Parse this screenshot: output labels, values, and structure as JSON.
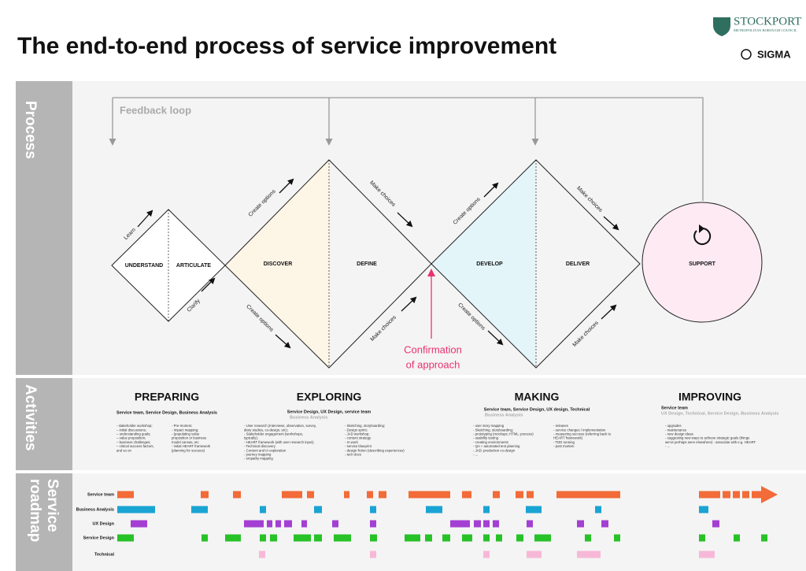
{
  "header": {
    "title": "The end-to-end process of service improvement",
    "logos": [
      "STOCKPORT",
      "METROPOLITAN BOROUGH COUNCIL",
      "SIGMA"
    ]
  },
  "sections": [
    {
      "lines": [
        "Process"
      ]
    },
    {
      "lines": [
        "Activities"
      ]
    },
    {
      "lines": [
        "Service",
        "roadmap"
      ]
    }
  ],
  "process": {
    "feedback_loop": "Feedback loop",
    "stages": [
      "UNDERSTAND",
      "ARTICULATE",
      "DISCOVER",
      "DEFINE",
      "DEVELOP",
      "DELIVER",
      "SUPPORT"
    ],
    "arrow_labels": [
      "Learn",
      "Clarify",
      "Create options",
      "Create options",
      "Make choices",
      "Make choices",
      "Create options",
      "Create options",
      "Make choices",
      "Make choices"
    ],
    "milestone": [
      "Confirmation",
      "of approach"
    ]
  },
  "activities": [
    {
      "title": "PREPARING",
      "teams": "Service team, Service Design, Business Analysis",
      "columns": [
        [
          "- stakeholder workshop;",
          "– initial discussions;",
          "– understanding goals;",
          "– value proposition;",
          "– business challenges;",
          "– critical success factors,",
          "and so on"
        ],
        [
          "- Pre-mortem;",
          "- Impact mapping;",
          "- (populating value",
          "proposition or business",
          "model canvas, etc",
          "- initial HEART framework",
          "(planning for success)"
        ]
      ]
    },
    {
      "title": "EXPLORING",
      "teams": "Service Design, UX Design, service team",
      "teams_secondary": "Business Analysis",
      "columns": [
        [
          "- User research (interviews, observation, survey,",
          "diary studies, co-design, etc);",
          "- Stakeholder engagement (workshops,",
          "typically);",
          "- HEART framework (with user research input);",
          "- Technical discovery",
          "- Content and IA exploration",
          "- journey mapping",
          "- empathy mapping"
        ],
        [
          "- Sketching, storyboarding;",
          "- Design sprint;",
          "- JAD workshop;",
          "- content strategy",
          "- IA work",
          "- service blueprint",
          "- design fiction (describing experiences)",
          "- tech docs"
        ]
      ]
    },
    {
      "title": "MAKING",
      "teams": "Service team, Service Design, UX design, Technical",
      "teams_secondary": "Business Analysis",
      "columns": [
        [
          "- user story mapping",
          "- Sketching, storyboarding;",
          "- prototyping (mockups; HTML; process)",
          "- usability testing",
          "- creating environments",
          "- QA + automated test planning",
          "- JAD: production co-design",
          "- ..."
        ],
        [
          "- releases",
          "- service changes / implementation",
          "- measuring success (referring back to",
          "HEART framework)",
          "- TDD running",
          "- post mortem"
        ]
      ]
    },
    {
      "title": "IMPROVING",
      "teams": "Service team",
      "teams_secondary": "UX Design, Technical, Service Design, Business Analysis",
      "columns": [
        [
          "- upgrades",
          "- maintenance",
          "- new design ideas",
          "- suggesting new ways to achieve strategic goals (things",
          "we've perhaps seen elsewhere) - associate with e.g. HEART",
          "- ..."
        ]
      ]
    }
  ],
  "roadmap": {
    "rows": [
      "Service team",
      "Business Analysis",
      "UX Design",
      "Service Design",
      "Technical"
    ]
  }
}
